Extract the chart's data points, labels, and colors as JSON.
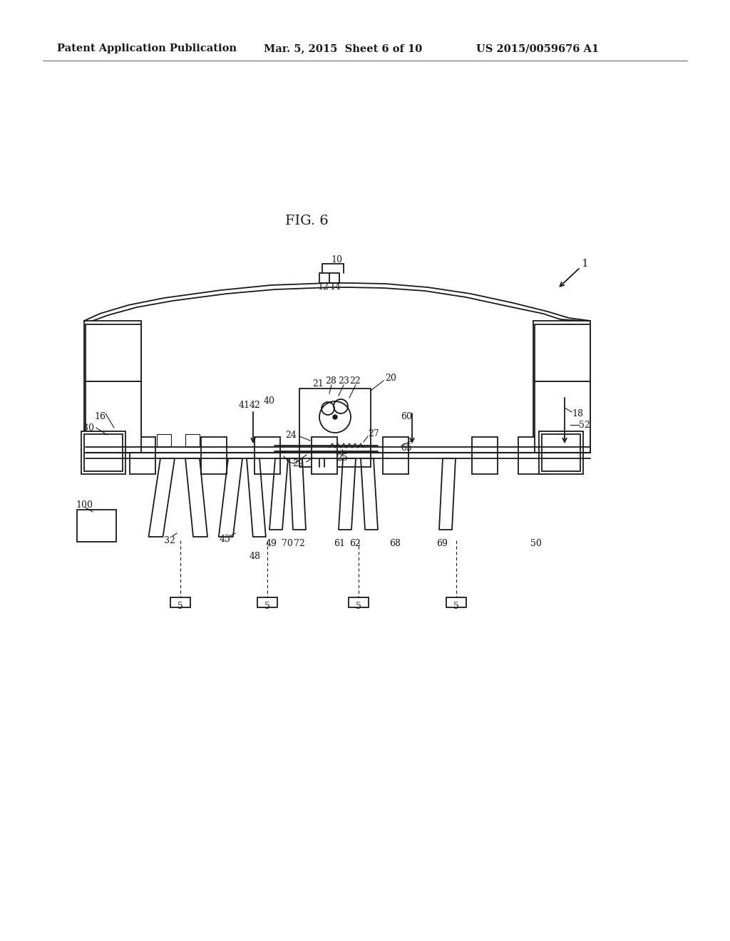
{
  "bg_color": "#ffffff",
  "line_color": "#1a1a1a",
  "header_left": "Patent Application Publication",
  "header_mid": "Mar. 5, 2015  Sheet 6 of 10",
  "header_right": "US 2015/0059676 A1",
  "fig_label": "FIG. 6"
}
